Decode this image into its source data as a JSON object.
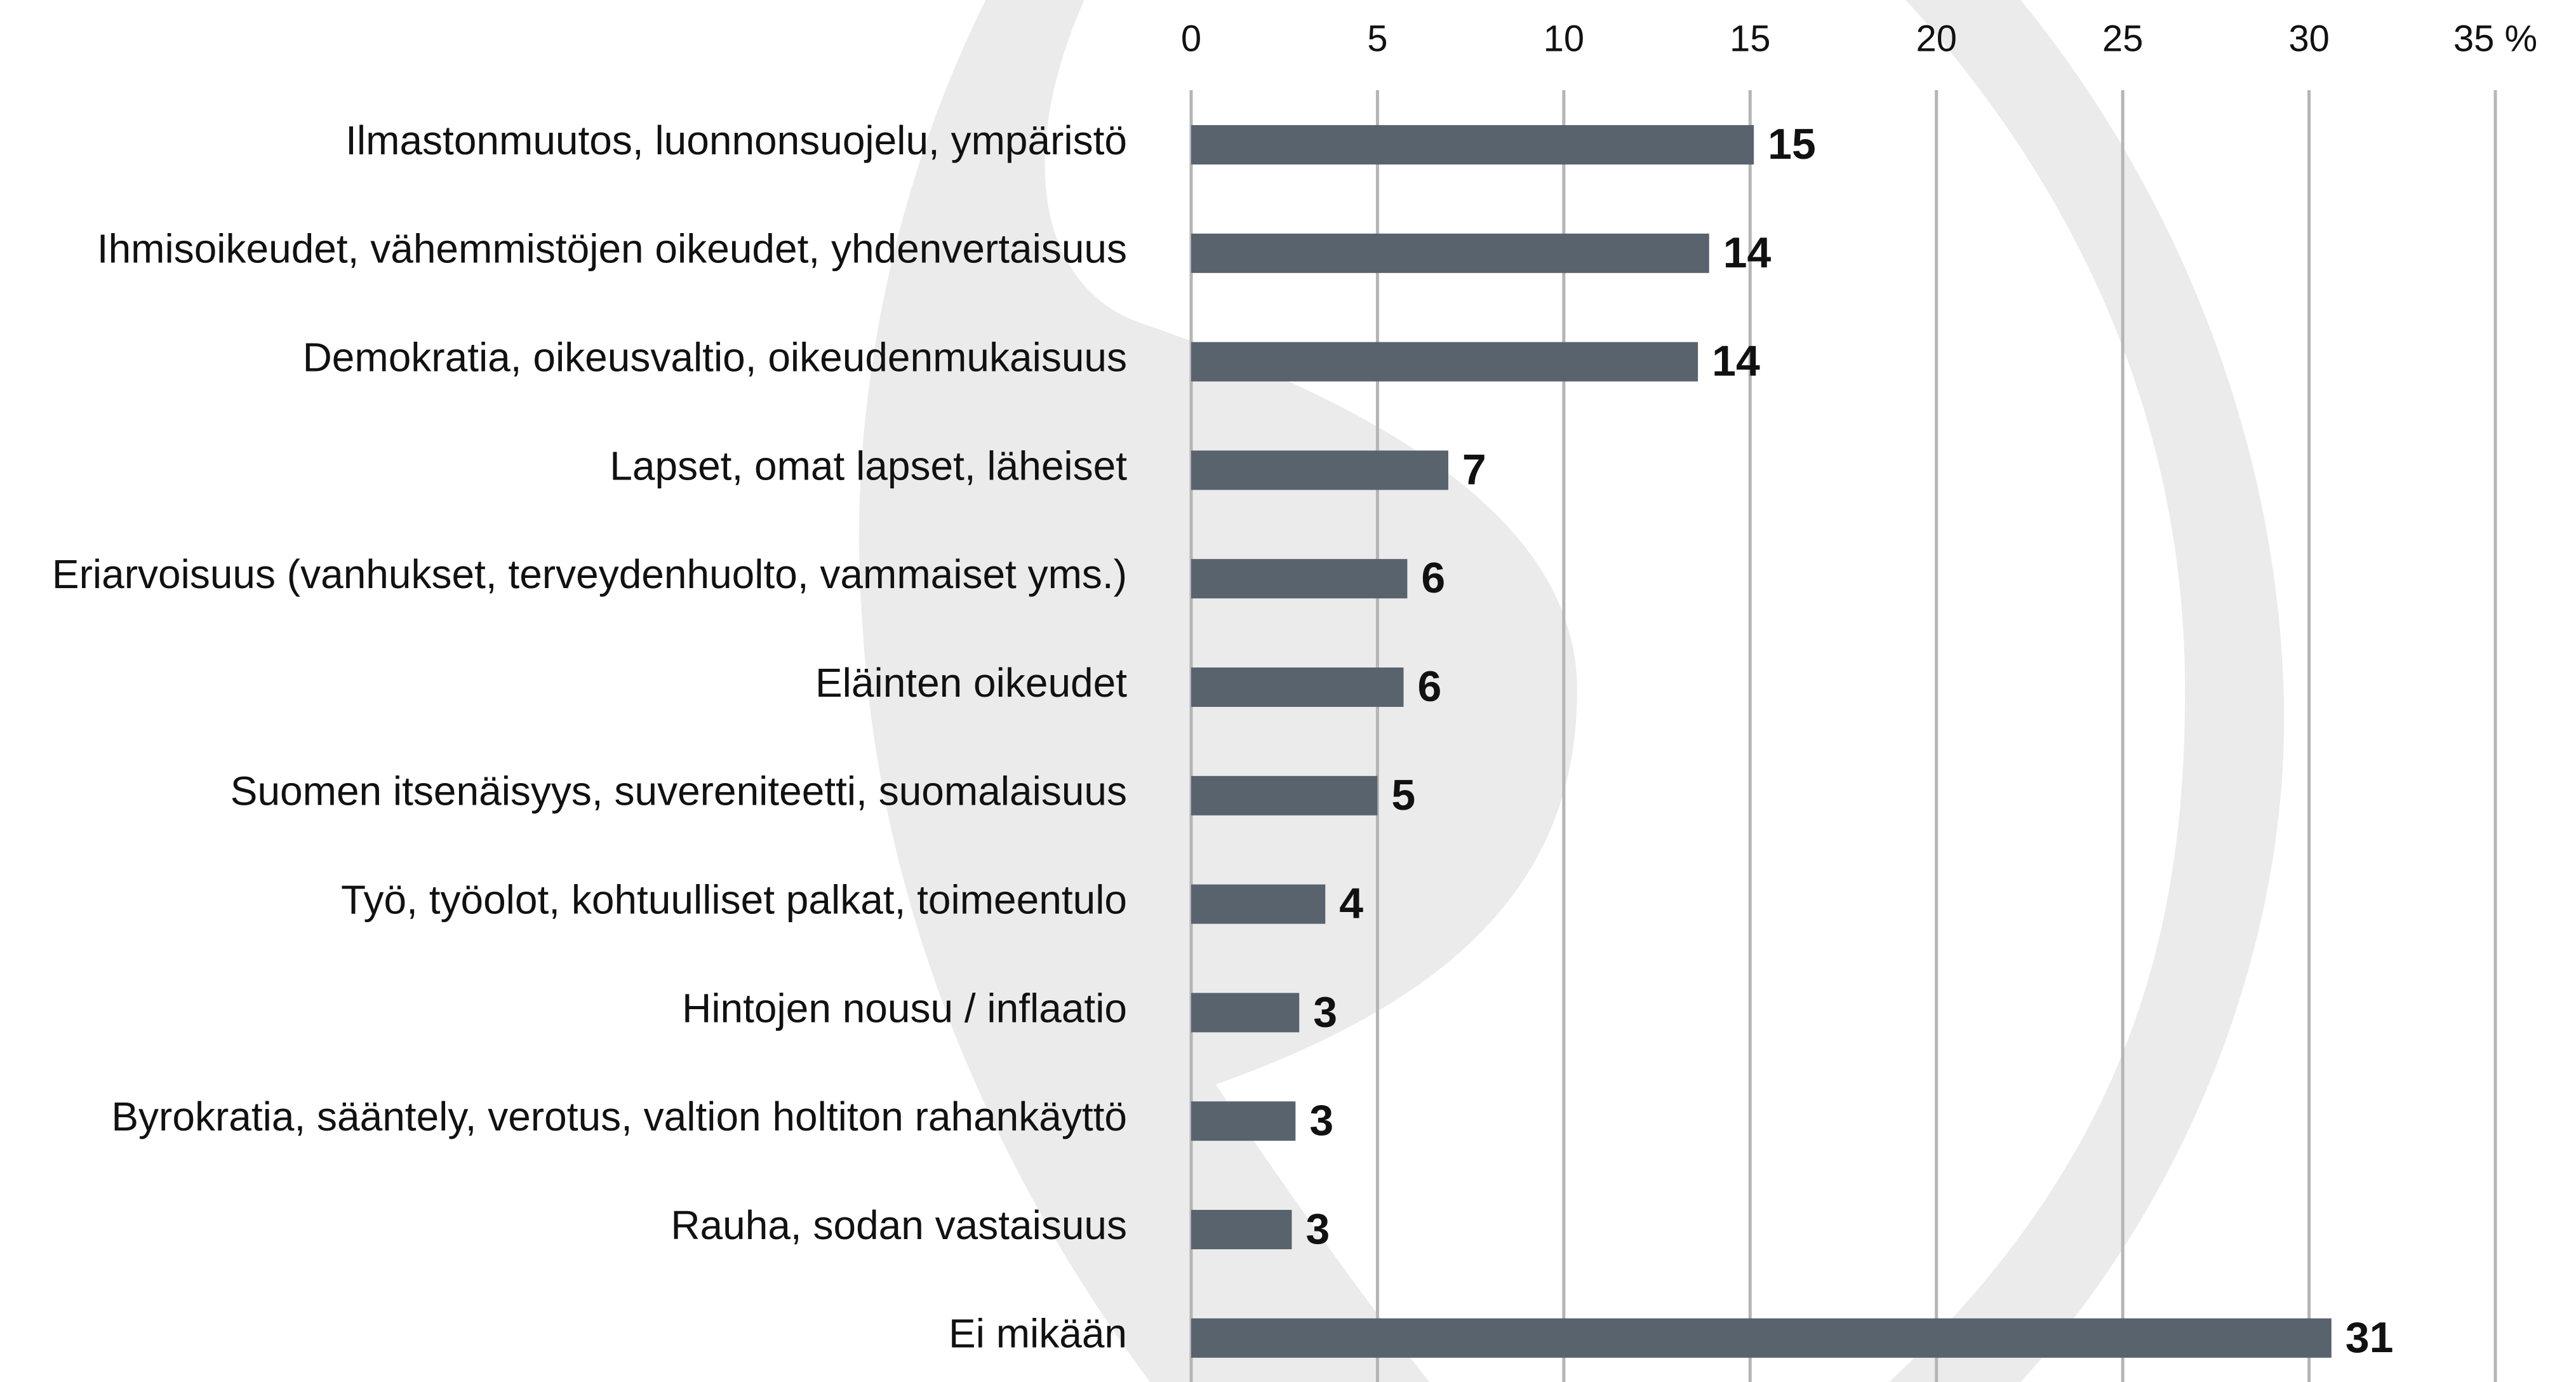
{
  "chart_data": {
    "type": "barh",
    "categories": [
      "Ilmastonmuutos, luonnonsuojelu, ympäristö",
      "Ihmisoikeudet, vähemmistöjen oikeudet, yhdenvertaisuus",
      "Demokratia, oikeusvaltio, oikeudenmukaisuus",
      "Lapset, omat lapset, läheiset",
      "Eriarvoisuus (vanhukset, terveydenhuolto, vammaiset yms.)",
      "Eläinten oikeudet",
      "Suomen itsenäisyys, suvereniteetti, suomalaisuus",
      "Työ, työolot, kohtuulliset palkat, toimeentulo",
      "Hintojen nousu / inflaatio",
      "Byrokratia, sääntely, verotus, valtion holtiton rahankäyttö",
      "Rauha, sodan vastaisuus",
      "Ei mikään"
    ],
    "values": [
      15.1,
      13.9,
      13.6,
      6.9,
      5.8,
      5.7,
      5.0,
      3.6,
      2.9,
      2.8,
      2.7,
      30.6
    ],
    "value_labels": [
      "15",
      "14",
      "14",
      "7",
      "6",
      "6",
      "5",
      "4",
      "3",
      "3",
      "3",
      "31"
    ],
    "color": "#59636e",
    "xlim": [
      0,
      35
    ],
    "xticks": [
      0,
      5,
      10,
      15,
      20,
      25,
      30,
      {
        "value": 35,
        "label": "35 %"
      }
    ],
    "grid": true
  }
}
